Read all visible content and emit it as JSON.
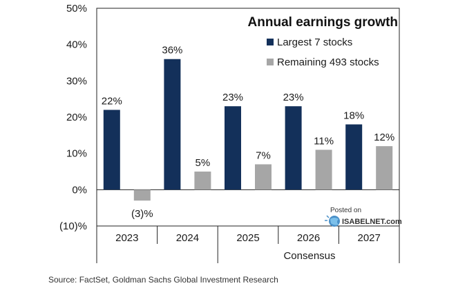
{
  "chart_data": {
    "type": "bar",
    "title": "Annual earnings growth",
    "categories": [
      "2023",
      "2024",
      "2025",
      "2026",
      "2027"
    ],
    "category_group_label": "Consensus",
    "series": [
      {
        "name": "Largest 7 stocks",
        "color": "#13305a",
        "values": [
          22,
          36,
          23,
          23,
          18
        ],
        "labels": [
          "22%",
          "36%",
          "23%",
          "23%",
          "18%"
        ]
      },
      {
        "name": "Remaining 493 stocks",
        "color": "#a6a6a6",
        "values": [
          -3,
          5,
          7,
          11,
          12
        ],
        "labels": [
          "(3)%",
          "5%",
          "7%",
          "11%",
          "12%"
        ]
      }
    ],
    "ylim": [
      -10,
      50
    ],
    "yticks": [
      50,
      40,
      30,
      20,
      10,
      0,
      -10
    ],
    "ytick_labels": [
      "50%",
      "40%",
      "30%",
      "20%",
      "10%",
      "0%",
      "(10)%"
    ],
    "legend_position": "top-right",
    "grid": false
  },
  "watermark": {
    "line1": "Posted on",
    "line2": "ISABELNET.com"
  },
  "source": "Source: FactSet, Goldman Sachs Global Investment Research"
}
